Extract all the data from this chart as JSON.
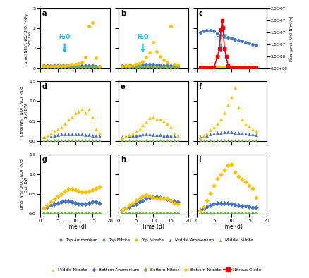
{
  "fig_width": 4.39,
  "fig_height": 3.94,
  "dpi": 100,
  "nh4_color": "#4472C4",
  "no2_color": "#70AD47",
  "no3_color": "#FFC000",
  "n2o_color": "#FF0000",
  "h2o_color": "#00BFFF",
  "row0_ylim": [
    0.0,
    3.0
  ],
  "row0_yticks": [
    0.0,
    1.0,
    2.0,
    3.0
  ],
  "row1_ylim": [
    0.0,
    1.5
  ],
  "row1_yticks": [
    0.0,
    0.5,
    1.0,
    1.5
  ],
  "row2_ylim": [
    0.0,
    1.5
  ],
  "row2_yticks": [
    0.0,
    0.5,
    1.0,
    1.5
  ],
  "xlim": [
    0,
    20
  ],
  "xticks": [
    0,
    5,
    10,
    15,
    20
  ],
  "n2o_ylim": [
    0.0,
    2.5e-07
  ],
  "n2o_yticks": [
    0.0,
    5e-08,
    1e-07,
    1.5e-07,
    2e-07,
    2.5e-07
  ],
  "ylabel_row0": "μmol NH₄⁺,NO₂⁻,NO₃⁻-N/g\nSoil DW",
  "ylabel_row1": "μmol NH₄⁺,NO₂⁻,NO₃⁻-N/g\nSoil DW",
  "ylabel_row2": "μmol NH₄⁺,NO₂⁻,NO₃⁻-N/g\nSoil DW",
  "n2o_ylabel": "Flux (μmol N₂O-N/m²/h)",
  "xlabel": "Time (d)",
  "h2o_time": 7,
  "panel_a": {
    "nh4": {
      "t": [
        1,
        2,
        3,
        4,
        5,
        6,
        7,
        8,
        9,
        10,
        11,
        12,
        13,
        14,
        15,
        16,
        17
      ],
      "v": [
        0.12,
        0.13,
        0.13,
        0.14,
        0.14,
        0.15,
        0.15,
        0.14,
        0.13,
        0.13,
        0.12,
        0.12,
        0.12,
        0.11,
        0.11,
        0.1,
        0.1
      ]
    },
    "no2": {
      "t": [
        1,
        2,
        3,
        4,
        5,
        6,
        7,
        8,
        9,
        10,
        11,
        12,
        13,
        14,
        15,
        16,
        17
      ],
      "v": [
        0.05,
        0.05,
        0.05,
        0.06,
        0.06,
        0.06,
        0.06,
        0.06,
        0.05,
        0.05,
        0.05,
        0.05,
        0.04,
        0.04,
        0.04,
        0.04,
        0.04
      ]
    },
    "no3": {
      "t": [
        1,
        2,
        3,
        4,
        5,
        6,
        7,
        8,
        9,
        10,
        11,
        12,
        13,
        14,
        15,
        16,
        17
      ],
      "v": [
        0.08,
        0.09,
        0.09,
        0.1,
        0.1,
        0.12,
        0.12,
        0.15,
        0.18,
        0.2,
        0.25,
        0.3,
        0.55,
        2.1,
        2.3,
        0.5,
        0.1
      ]
    }
  },
  "panel_b": {
    "nh4": {
      "t": [
        1,
        2,
        3,
        4,
        5,
        6,
        7,
        8,
        9,
        10,
        11,
        12,
        13,
        14,
        15,
        16,
        17
      ],
      "v": [
        0.12,
        0.13,
        0.14,
        0.15,
        0.16,
        0.17,
        0.18,
        0.2,
        0.2,
        0.18,
        0.16,
        0.15,
        0.14,
        0.13,
        0.12,
        0.12,
        0.11
      ]
    },
    "no2": {
      "t": [
        1,
        2,
        3,
        4,
        5,
        6,
        7,
        8,
        9,
        10,
        11,
        12,
        13,
        14,
        15,
        16,
        17
      ],
      "v": [
        0.05,
        0.05,
        0.05,
        0.06,
        0.06,
        0.06,
        0.07,
        0.07,
        0.07,
        0.06,
        0.06,
        0.05,
        0.05,
        0.05,
        0.05,
        0.04,
        0.04
      ]
    },
    "no3": {
      "t": [
        1,
        2,
        3,
        4,
        5,
        6,
        7,
        8,
        9,
        10,
        11,
        12,
        13,
        14,
        15,
        16,
        17
      ],
      "v": [
        0.1,
        0.12,
        0.14,
        0.16,
        0.2,
        0.25,
        0.35,
        0.55,
        0.8,
        1.3,
        0.85,
        0.6,
        0.4,
        0.3,
        2.1,
        0.2,
        0.15
      ]
    }
  },
  "panel_c": {
    "nh4": {
      "t": [
        1,
        2,
        3,
        4,
        5,
        6,
        7,
        8,
        9,
        10,
        11,
        12,
        13,
        14,
        15,
        16,
        17
      ],
      "v": [
        1.8,
        1.85,
        1.9,
        1.9,
        1.85,
        1.75,
        1.65,
        1.6,
        1.55,
        1.5,
        1.45,
        1.4,
        1.35,
        1.3,
        1.25,
        1.2,
        1.15
      ]
    },
    "no2": {
      "t": [
        1,
        2,
        3,
        4,
        5,
        6,
        7,
        8,
        9,
        10,
        11,
        12,
        13,
        14,
        15,
        16,
        17
      ],
      "v": [
        0.05,
        0.05,
        0.05,
        0.05,
        0.05,
        0.05,
        0.05,
        0.05,
        0.05,
        0.05,
        0.05,
        0.05,
        0.04,
        0.04,
        0.04,
        0.04,
        0.04
      ]
    },
    "no3": {
      "t": [
        1,
        2,
        3,
        4,
        5,
        6,
        7,
        8,
        9,
        10,
        11,
        12,
        13,
        14,
        15,
        16,
        17
      ],
      "v": [
        0.04,
        0.04,
        0.04,
        0.04,
        0.04,
        0.04,
        0.04,
        0.04,
        0.04,
        0.04,
        0.04,
        0.04,
        0.04,
        0.04,
        0.04,
        0.04,
        0.04
      ]
    },
    "n2o": {
      "t": [
        1,
        2,
        3,
        4,
        5,
        6,
        6.5,
        7,
        7.3,
        7.6,
        8,
        8.5,
        9,
        10,
        11,
        12,
        13,
        14,
        15,
        16,
        17
      ],
      "v": [
        2e-09,
        2e-09,
        3e-09,
        3e-09,
        4e-09,
        5e-08,
        8e-08,
        1.6e-07,
        2e-07,
        1.7e-07,
        8e-08,
        5e-08,
        1e-08,
        4e-09,
        3e-09,
        2e-09,
        2e-09,
        2e-09,
        2e-09,
        2e-09,
        2e-09
      ]
    }
  },
  "panel_d": {
    "nh4": {
      "t": [
        1,
        2,
        3,
        4,
        5,
        6,
        7,
        8,
        9,
        10,
        11,
        12,
        13,
        14,
        15,
        16,
        17
      ],
      "v": [
        0.1,
        0.12,
        0.13,
        0.15,
        0.16,
        0.17,
        0.18,
        0.18,
        0.18,
        0.17,
        0.17,
        0.17,
        0.16,
        0.16,
        0.15,
        0.14,
        0.13
      ]
    },
    "no2": {
      "t": [
        1,
        2,
        3,
        4,
        5,
        6,
        7,
        8,
        9,
        10,
        11,
        12,
        13,
        14,
        15,
        16,
        17
      ],
      "v": [
        0.01,
        0.01,
        0.01,
        0.01,
        0.01,
        0.01,
        0.01,
        0.01,
        0.01,
        0.01,
        0.01,
        0.01,
        0.01,
        0.01,
        0.01,
        0.01,
        0.01
      ]
    },
    "no3": {
      "t": [
        1,
        2,
        3,
        4,
        5,
        6,
        7,
        8,
        9,
        10,
        11,
        12,
        13,
        14,
        15,
        16,
        17
      ],
      "v": [
        0.1,
        0.15,
        0.2,
        0.25,
        0.3,
        0.35,
        0.45,
        0.55,
        0.6,
        0.7,
        0.75,
        0.8,
        0.7,
        0.8,
        0.6,
        0.3,
        0.2
      ]
    }
  },
  "panel_e": {
    "nh4": {
      "t": [
        1,
        2,
        3,
        4,
        5,
        6,
        7,
        8,
        9,
        10,
        11,
        12,
        13,
        14,
        15,
        16,
        17
      ],
      "v": [
        0.1,
        0.12,
        0.13,
        0.14,
        0.15,
        0.16,
        0.17,
        0.17,
        0.17,
        0.16,
        0.16,
        0.16,
        0.15,
        0.15,
        0.14,
        0.13,
        0.12
      ]
    },
    "no2": {
      "t": [
        1,
        2,
        3,
        4,
        5,
        6,
        7,
        8,
        9,
        10,
        11,
        12,
        13,
        14,
        15,
        16,
        17
      ],
      "v": [
        0.01,
        0.01,
        0.01,
        0.01,
        0.01,
        0.01,
        0.01,
        0.01,
        0.01,
        0.01,
        0.01,
        0.01,
        0.01,
        0.01,
        0.01,
        0.01,
        0.01
      ]
    },
    "no3": {
      "t": [
        1,
        2,
        3,
        4,
        5,
        6,
        7,
        8,
        9,
        10,
        11,
        12,
        13,
        14,
        15,
        16,
        17
      ],
      "v": [
        0.08,
        0.12,
        0.16,
        0.2,
        0.25,
        0.3,
        0.4,
        0.48,
        0.58,
        0.6,
        0.55,
        0.55,
        0.5,
        0.45,
        0.35,
        0.2,
        0.15
      ]
    }
  },
  "panel_f": {
    "nh4": {
      "t": [
        1,
        2,
        3,
        4,
        5,
        6,
        7,
        8,
        9,
        10,
        11,
        12,
        13,
        14,
        15,
        16,
        17
      ],
      "v": [
        0.1,
        0.13,
        0.15,
        0.17,
        0.19,
        0.21,
        0.22,
        0.23,
        0.23,
        0.23,
        0.22,
        0.21,
        0.2,
        0.19,
        0.18,
        0.17,
        0.16
      ]
    },
    "no2": {
      "t": [
        1,
        2,
        3,
        4,
        5,
        6,
        7,
        8,
        9,
        10,
        11,
        12,
        13,
        14,
        15,
        16,
        17
      ],
      "v": [
        0.01,
        0.01,
        0.01,
        0.01,
        0.01,
        0.01,
        0.01,
        0.01,
        0.01,
        0.01,
        0.01,
        0.01,
        0.01,
        0.01,
        0.01,
        0.01,
        0.01
      ]
    },
    "no3": {
      "t": [
        1,
        2,
        3,
        4,
        5,
        6,
        7,
        8,
        9,
        10,
        11,
        12,
        13,
        14,
        15,
        16,
        17
      ],
      "v": [
        0.08,
        0.14,
        0.2,
        0.28,
        0.36,
        0.44,
        0.55,
        0.7,
        0.9,
        1.1,
        1.35,
        0.85,
        0.55,
        0.42,
        0.38,
        0.3,
        0.25
      ]
    }
  },
  "panel_g": {
    "nh4": {
      "t": [
        1,
        2,
        3,
        4,
        5,
        6,
        7,
        8,
        9,
        10,
        11,
        12,
        13,
        14,
        15,
        16,
        17
      ],
      "v": [
        0.15,
        0.18,
        0.22,
        0.25,
        0.28,
        0.3,
        0.32,
        0.33,
        0.3,
        0.28,
        0.25,
        0.25,
        0.25,
        0.28,
        0.3,
        0.3,
        0.28
      ]
    },
    "no2": {
      "t": [
        1,
        2,
        3,
        4,
        5,
        6,
        7,
        8,
        9,
        10,
        11,
        12,
        13,
        14,
        15,
        16,
        17
      ],
      "v": [
        0.01,
        0.01,
        0.01,
        0.01,
        0.01,
        0.01,
        0.01,
        0.01,
        0.01,
        0.01,
        0.01,
        0.01,
        0.01,
        0.01,
        0.01,
        0.01,
        0.01
      ]
    },
    "no3": {
      "t": [
        1,
        2,
        3,
        4,
        5,
        6,
        7,
        8,
        9,
        10,
        11,
        12,
        13,
        14,
        15,
        16,
        17
      ],
      "v": [
        0.15,
        0.22,
        0.3,
        0.38,
        0.45,
        0.5,
        0.58,
        0.62,
        0.62,
        0.6,
        0.58,
        0.55,
        0.55,
        0.57,
        0.6,
        0.65,
        0.68
      ]
    }
  },
  "panel_h": {
    "nh4": {
      "t": [
        1,
        2,
        3,
        4,
        5,
        6,
        7,
        8,
        9,
        10,
        11,
        12,
        13,
        14,
        15,
        16,
        17
      ],
      "v": [
        0.1,
        0.14,
        0.18,
        0.22,
        0.26,
        0.3,
        0.35,
        0.4,
        0.42,
        0.44,
        0.44,
        0.42,
        0.4,
        0.38,
        0.35,
        0.32,
        0.3
      ]
    },
    "no2": {
      "t": [
        1,
        2,
        3,
        4,
        5,
        6,
        7,
        8,
        9,
        10,
        11,
        12,
        13,
        14,
        15,
        16,
        17
      ],
      "v": [
        0.01,
        0.01,
        0.01,
        0.01,
        0.01,
        0.01,
        0.01,
        0.01,
        0.01,
        0.01,
        0.01,
        0.01,
        0.01,
        0.01,
        0.01,
        0.01,
        0.01
      ]
    },
    "no3": {
      "t": [
        1,
        2,
        3,
        4,
        5,
        6,
        7,
        8,
        9,
        10,
        11,
        12,
        13,
        14,
        15,
        16,
        17
      ],
      "v": [
        0.1,
        0.15,
        0.22,
        0.28,
        0.35,
        0.4,
        0.45,
        0.48,
        0.45,
        0.42,
        0.4,
        0.4,
        0.38,
        0.4,
        0.35,
        0.28,
        0.25
      ]
    }
  },
  "panel_i": {
    "nh4": {
      "t": [
        1,
        2,
        3,
        4,
        5,
        6,
        7,
        8,
        9,
        10,
        11,
        12,
        13,
        14,
        15,
        16,
        17
      ],
      "v": [
        0.1,
        0.14,
        0.18,
        0.22,
        0.25,
        0.28,
        0.28,
        0.28,
        0.28,
        0.25,
        0.23,
        0.22,
        0.2,
        0.2,
        0.18,
        0.17,
        0.16
      ]
    },
    "no2": {
      "t": [
        1,
        2,
        3,
        4,
        5,
        6,
        7,
        8,
        9,
        10,
        11,
        12,
        13,
        14,
        15,
        16,
        17
      ],
      "v": [
        0.01,
        0.01,
        0.01,
        0.01,
        0.01,
        0.01,
        0.01,
        0.01,
        0.01,
        0.01,
        0.01,
        0.01,
        0.01,
        0.01,
        0.01,
        0.01,
        0.01
      ]
    },
    "no3": {
      "t": [
        1,
        2,
        3,
        4,
        5,
        6,
        7,
        8,
        9,
        10,
        11,
        12,
        13,
        14,
        15,
        16,
        17
      ],
      "v": [
        0.08,
        0.18,
        0.35,
        0.52,
        0.72,
        0.9,
        1.0,
        1.1,
        1.22,
        1.25,
        1.05,
        0.95,
        0.88,
        0.8,
        0.72,
        0.65,
        0.42
      ]
    }
  }
}
